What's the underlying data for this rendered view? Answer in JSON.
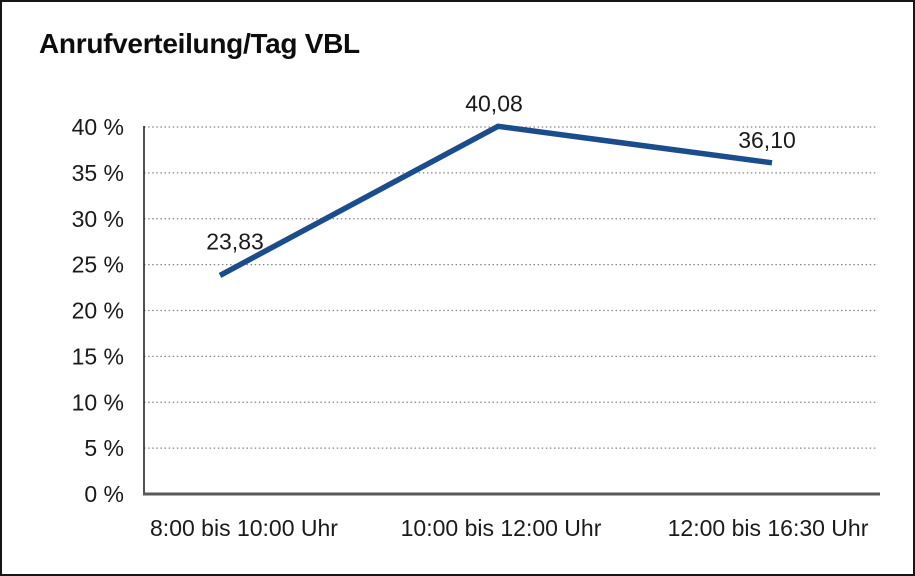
{
  "chart_data": {
    "type": "line",
    "title": "Anrufverteilung/Tag VBL",
    "categories": [
      "8:00 bis 10:00 Uhr",
      "10:00 bis 12:00 Uhr",
      "12:00 bis 16:30 Uhr"
    ],
    "values": [
      23.83,
      40.08,
      36.1
    ],
    "value_labels": [
      "23,83",
      "40,08",
      "36,10"
    ],
    "ylim": [
      0,
      40
    ],
    "ytick_step": 5,
    "ytick_labels": [
      "0 %",
      "5 %",
      "10 %",
      "15 %",
      "20 %",
      "25 %",
      "30 %",
      "35 %",
      "40 %"
    ],
    "xlabel": "",
    "ylabel": "",
    "grid": "horizontal-dotted",
    "legend": "none",
    "line_color": "#1b4d8c",
    "axis_color": "#262626",
    "baseline_color": "#5a5a5a",
    "grid_color": "#858585",
    "text_color": "#1a1a1a"
  }
}
